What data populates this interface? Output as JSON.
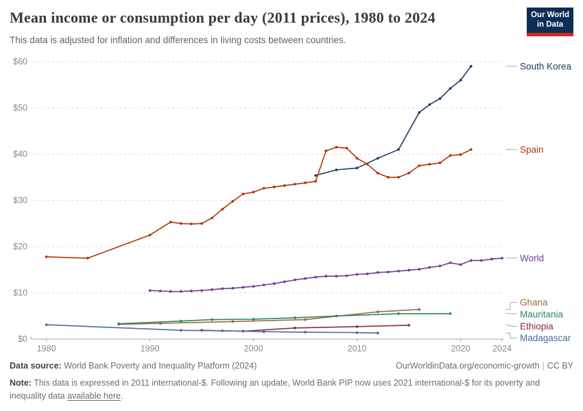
{
  "header": {
    "logo": {
      "line1": "Our World",
      "line2": "in Data",
      "bg_color": "#0c2d55",
      "accent_color": "#d02a1e"
    }
  },
  "chart_data": {
    "type": "line",
    "title": "Mean income or consumption per day (2011 prices), 1980 to 2024",
    "subtitle": "This data is adjusted for inflation and differences in living costs between countries.",
    "x_range": [
      1978.5,
      2024.2
    ],
    "y_range": [
      0,
      60
    ],
    "x_ticks": [
      1980,
      1990,
      2000,
      2010,
      2020,
      2024
    ],
    "y_ticks": [
      {
        "value": 0,
        "label": "$0"
      },
      {
        "value": 10,
        "label": "$10"
      },
      {
        "value": 20,
        "label": "$20"
      },
      {
        "value": 30,
        "label": "$30"
      },
      {
        "value": 40,
        "label": "$40"
      },
      {
        "value": 50,
        "label": "$50"
      },
      {
        "value": 60,
        "label": "$60"
      }
    ],
    "grid": "horizontal-dashed",
    "legend_position": "right-edge-labels",
    "series": [
      {
        "name": "South Korea",
        "color": "#1d3d63",
        "points": [
          [
            2006,
            35.4
          ],
          [
            2008,
            36.6
          ],
          [
            2010,
            37.0
          ],
          [
            2012,
            39.1
          ],
          [
            2014,
            41.0
          ],
          [
            2016,
            49.0
          ],
          [
            2017,
            50.7
          ],
          [
            2018,
            52.0
          ],
          [
            2019,
            54.2
          ],
          [
            2020,
            56.0
          ],
          [
            2021,
            59.0
          ]
        ]
      },
      {
        "name": "Spain",
        "color": "#b13507",
        "points": [
          [
            1980,
            17.8
          ],
          [
            1984,
            17.5
          ],
          [
            1990,
            22.5
          ],
          [
            1992,
            25.3
          ],
          [
            1993,
            25.0
          ],
          [
            1994,
            24.9
          ],
          [
            1995,
            25.0
          ],
          [
            1996,
            26.2
          ],
          [
            1997,
            28.1
          ],
          [
            1998,
            29.8
          ],
          [
            1999,
            31.4
          ],
          [
            2000,
            31.8
          ],
          [
            2001,
            32.6
          ],
          [
            2002,
            32.9
          ],
          [
            2003,
            33.2
          ],
          [
            2004,
            33.5
          ],
          [
            2005,
            33.8
          ],
          [
            2006,
            34.1
          ],
          [
            2007,
            40.7
          ],
          [
            2008,
            41.5
          ],
          [
            2009,
            41.3
          ],
          [
            2010,
            39.1
          ],
          [
            2011,
            37.8
          ],
          [
            2012,
            35.9
          ],
          [
            2013,
            35.0
          ],
          [
            2014,
            35.0
          ],
          [
            2015,
            35.9
          ],
          [
            2016,
            37.5
          ],
          [
            2017,
            37.8
          ],
          [
            2018,
            38.1
          ],
          [
            2019,
            39.7
          ],
          [
            2020,
            39.9
          ],
          [
            2021,
            41.0
          ]
        ]
      },
      {
        "name": "World",
        "color": "#6d3e91",
        "points": [
          [
            1990,
            10.5
          ],
          [
            1991,
            10.4
          ],
          [
            1992,
            10.3
          ],
          [
            1993,
            10.3
          ],
          [
            1994,
            10.4
          ],
          [
            1995,
            10.5
          ],
          [
            1996,
            10.7
          ],
          [
            1997,
            10.9
          ],
          [
            1998,
            11.0
          ],
          [
            1999,
            11.2
          ],
          [
            2000,
            11.4
          ],
          [
            2001,
            11.7
          ],
          [
            2002,
            12.0
          ],
          [
            2003,
            12.4
          ],
          [
            2004,
            12.8
          ],
          [
            2005,
            13.1
          ],
          [
            2006,
            13.4
          ],
          [
            2007,
            13.6
          ],
          [
            2008,
            13.6
          ],
          [
            2009,
            13.7
          ],
          [
            2010,
            14.0
          ],
          [
            2011,
            14.1
          ],
          [
            2012,
            14.4
          ],
          [
            2013,
            14.5
          ],
          [
            2014,
            14.7
          ],
          [
            2015,
            14.9
          ],
          [
            2016,
            15.1
          ],
          [
            2017,
            15.5
          ],
          [
            2018,
            15.8
          ],
          [
            2019,
            16.5
          ],
          [
            2020,
            16.1
          ],
          [
            2021,
            17.0
          ],
          [
            2022,
            17.0
          ],
          [
            2023,
            17.3
          ],
          [
            2024,
            17.5
          ]
        ]
      },
      {
        "name": "Ghana",
        "color": "#996d39",
        "points": [
          [
            1987,
            3.2
          ],
          [
            1991,
            3.4
          ],
          [
            1998,
            3.8
          ],
          [
            2005,
            4.2
          ],
          [
            2012,
            5.9
          ],
          [
            2016,
            6.4
          ]
        ]
      },
      {
        "name": "Mauritania",
        "color": "#2c8465",
        "points": [
          [
            1987,
            3.3
          ],
          [
            1993,
            3.9
          ],
          [
            1996,
            4.2
          ],
          [
            2000,
            4.3
          ],
          [
            2004,
            4.6
          ],
          [
            2008,
            5.0
          ],
          [
            2014,
            5.5
          ],
          [
            2019,
            5.5
          ]
        ]
      },
      {
        "name": "Ethiopia",
        "color": "#883039",
        "points": [
          [
            1995,
            1.9
          ],
          [
            1999,
            1.7
          ],
          [
            2004,
            2.4
          ],
          [
            2010,
            2.7
          ],
          [
            2015,
            3.0
          ]
        ]
      },
      {
        "name": "Madagascar",
        "color": "#4c6a9c",
        "points": [
          [
            1980,
            3.1
          ],
          [
            1993,
            1.9
          ],
          [
            1997,
            1.8
          ],
          [
            1999,
            1.7
          ],
          [
            2001,
            1.6
          ],
          [
            2005,
            1.5
          ],
          [
            2010,
            1.4
          ],
          [
            2012,
            1.3
          ]
        ]
      }
    ]
  },
  "footer": {
    "data_source_label": "Data source:",
    "data_source_text": "World Bank Poverty and Inequality Platform (2024)",
    "attribution_url": "OurWorldinData.org/economic-growth",
    "separator": "|",
    "license": "CC BY",
    "note_label": "Note:",
    "note_text_before_link": "This data is expressed in 2011 international-$. Following an update, World Bank PIP now uses 2021 international-$ for its poverty and inequality data",
    "note_link_text": "available here",
    "note_text_after_link": "."
  }
}
